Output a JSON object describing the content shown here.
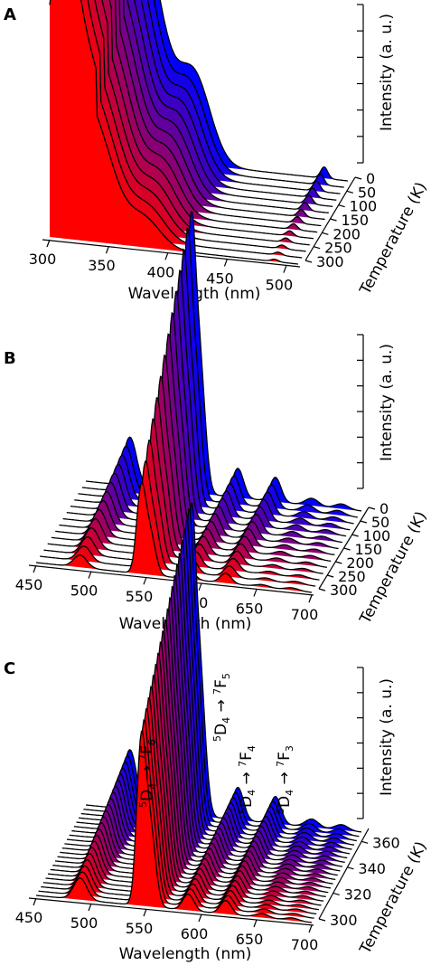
{
  "figure": {
    "panels": [
      "A",
      "B",
      "C"
    ]
  },
  "chart_data": [
    {
      "panel": "A",
      "type": "area",
      "subtype": "3d-waterfall",
      "xlabel": "Wavelength (nm)",
      "ylabel": "Temperature (K)",
      "zlabel": "Intensity (a. u.)",
      "x_ticks": [
        300,
        350,
        400,
        450,
        500
      ],
      "xlim": [
        300,
        510
      ],
      "y_ticks": [
        0,
        50,
        100,
        150,
        200,
        250,
        300
      ],
      "ylim": [
        0,
        300
      ],
      "series_count": 14,
      "color_scale": {
        "low_T": "#0000ff",
        "high_T": "#ff0000",
        "edge": "#000000"
      },
      "peaks": [
        {
          "x": 300,
          "height_at_0K": 0.78,
          "height_at_300K": 0.55
        },
        {
          "x": 315,
          "height_at_0K": 0.92,
          "height_at_300K": 0.62
        },
        {
          "x": 335,
          "height_at_0K": 1.0,
          "height_at_300K": 0.55
        },
        {
          "x": 380,
          "height_at_0K": 0.38,
          "height_at_300K": 0.12
        },
        {
          "x": 490,
          "height_at_0K": 0.05,
          "height_at_300K": 0.01
        }
      ]
    },
    {
      "panel": "B",
      "type": "area",
      "subtype": "3d-waterfall",
      "xlabel": "Wavelength (nm)",
      "ylabel": "Temperature (K)",
      "zlabel": "Intensity (a. u.)",
      "x_ticks": [
        450,
        500,
        550,
        600,
        650,
        700
      ],
      "xlim": [
        450,
        700
      ],
      "y_ticks": [
        0,
        50,
        100,
        150,
        200,
        250,
        300
      ],
      "ylim": [
        0,
        300
      ],
      "series_count": 14,
      "color_scale": {
        "low_T": "#0000ff",
        "high_T": "#ff0000",
        "edge": "#000000"
      },
      "peaks": [
        {
          "x": 490,
          "height_at_0K": 0.2,
          "height_at_300K": 0.05
        },
        {
          "x": 545,
          "height_at_0K": 1.0,
          "height_at_300K": 0.32
        },
        {
          "x": 588,
          "height_at_0K": 0.12,
          "height_at_300K": 0.05
        },
        {
          "x": 622,
          "height_at_0K": 0.1,
          "height_at_300K": 0.04
        },
        {
          "x": 655,
          "height_at_0K": 0.03,
          "height_at_300K": 0.01
        },
        {
          "x": 682,
          "height_at_0K": 0.02,
          "height_at_300K": 0.01
        }
      ]
    },
    {
      "panel": "C",
      "type": "area",
      "subtype": "3d-waterfall",
      "xlabel": "Wavelength (nm)",
      "ylabel": "Temperature (K)",
      "zlabel": "Intensity (a. u.)",
      "x_ticks": [
        450,
        500,
        550,
        600,
        650,
        700
      ],
      "xlim": [
        450,
        700
      ],
      "y_ticks": [
        300,
        320,
        340,
        360
      ],
      "ylim": [
        300,
        370
      ],
      "series_count": 22,
      "color_scale": {
        "low_T": "#0000ff",
        "high_T": "#ff0000",
        "edge": "#000000"
      },
      "peaks": [
        {
          "x": 490,
          "height_at_low_T": 0.22,
          "height_at_high_T": 0.08
        },
        {
          "x": 545,
          "height_at_low_T": 1.0,
          "height_at_high_T": 0.55
        },
        {
          "x": 588,
          "height_at_low_T": 0.12,
          "height_at_high_T": 0.06
        },
        {
          "x": 622,
          "height_at_low_T": 0.1,
          "height_at_high_T": 0.05
        },
        {
          "x": 655,
          "height_at_low_T": 0.03,
          "height_at_high_T": 0.015
        },
        {
          "x": 682,
          "height_at_low_T": 0.02,
          "height_at_high_T": 0.01
        }
      ],
      "annotations": [
        {
          "x": 490,
          "base": "D",
          "base_sup": "5",
          "base_sub": "4",
          "arrow": "→",
          "target": "F",
          "target_sup": "7",
          "target_sub": "6"
        },
        {
          "x": 545,
          "base": "D",
          "base_sup": "5",
          "base_sub": "4",
          "arrow": "→",
          "target": "F",
          "target_sup": "7",
          "target_sub": "5"
        },
        {
          "x": 588,
          "base": "D",
          "base_sup": "5",
          "base_sub": "4",
          "arrow": "→",
          "target": "F",
          "target_sup": "7",
          "target_sub": "4"
        },
        {
          "x": 622,
          "base": "D",
          "base_sup": "5",
          "base_sub": "4",
          "arrow": "→",
          "target": "F",
          "target_sup": "7",
          "target_sub": "3"
        }
      ]
    }
  ]
}
